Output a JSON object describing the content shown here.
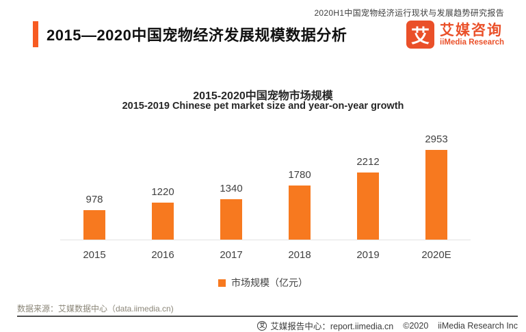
{
  "meta": {
    "report_note": "2020H1中国宠物经济运行现状与发展趋势研究报告",
    "page_title": "2015—2020中国宠物经济发展规模数据分析"
  },
  "brand": {
    "logo_glyph": "艾",
    "name_cn": "艾媒咨询",
    "name_en": "iiMedia Research"
  },
  "chart_data": {
    "type": "bar",
    "title": "2015-2020中国宠物市场规模",
    "subtitle": "2015-2019 Chinese pet market size and year-on-year growth",
    "categories": [
      "2015",
      "2016",
      "2017",
      "2018",
      "2019",
      "2020E"
    ],
    "values": [
      978,
      1220,
      1340,
      1780,
      2212,
      2953
    ],
    "series_name": "市场规模（亿元）",
    "unit": "亿元",
    "ylim": [
      0,
      3200
    ],
    "grid": false,
    "legend_position": "bottom",
    "data_labels": true,
    "bar_color": "#f7791f"
  },
  "legend": {
    "label": "市场规模（亿元）"
  },
  "footer": {
    "data_source": "数据来源：艾媒数据中心（data.iimedia.cn)",
    "icon_glyph": "艾",
    "report_center": "艾媒报告中心：report.iimedia.cn",
    "copyright": "©2020",
    "company": "iiMedia Research Inc"
  },
  "colors": {
    "bar": "#f7791f",
    "brand_orange": "#ea5029",
    "accent_bar": "#f75b22",
    "footer_line": "#4d4d4d",
    "baseline": "#e3e3e3"
  }
}
